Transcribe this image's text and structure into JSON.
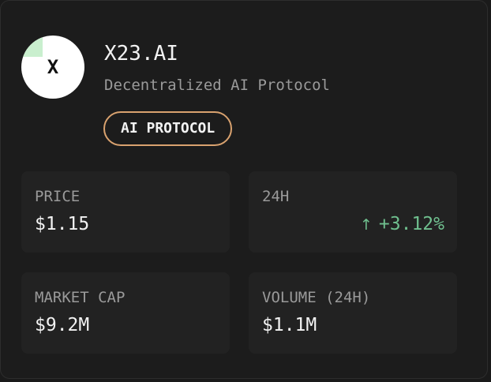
{
  "token": {
    "avatar_letter": "X",
    "name": "X23.AI",
    "description": "Decentralized AI Protocol",
    "category_badge": "AI PROTOCOL"
  },
  "stats": {
    "price": {
      "label": "PRICE",
      "value": "$1.15"
    },
    "change_24h": {
      "label": "24H",
      "value": "+3.12%",
      "direction": "up",
      "arrow_icon": "arrow-up-icon"
    },
    "market_cap": {
      "label": "MARKET CAP",
      "value": "$9.2M"
    },
    "volume_24h": {
      "label": "VOLUME (24H)",
      "value": "$1.1M"
    }
  },
  "colors": {
    "background": "#1c1c1c",
    "tile": "#222222",
    "badge_border": "#d9a26f",
    "positive": "#6fbf8e",
    "muted_text": "#9a9a9a",
    "primary_text": "#f2f2f2"
  }
}
